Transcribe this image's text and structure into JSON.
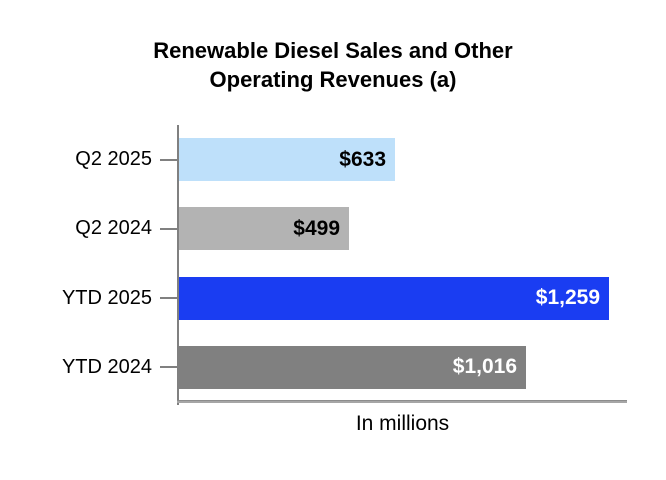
{
  "title": {
    "line1": "Renewable Diesel Sales and Other",
    "line2": "Operating Revenues (a)"
  },
  "chart_data": {
    "type": "bar",
    "orientation": "horizontal",
    "title": "Renewable Diesel Sales and Other Operating Revenues (a)",
    "xlabel": "In millions",
    "categories": [
      "Q2 2025",
      "Q2 2024",
      "YTD 2025",
      "YTD 2024"
    ],
    "values": [
      633,
      499,
      1259,
      1016
    ],
    "value_labels": [
      "$633",
      "$499",
      "$1,259",
      "$1,016"
    ],
    "xlim": [
      0,
      1315
    ],
    "grid": false,
    "legend": null,
    "colors": {
      "bars": [
        "#BEE0FA",
        "#B3B3B3",
        "#1A3DF2",
        "#808080"
      ],
      "value_label_text": [
        "#000000",
        "#000000",
        "#FFFFFF",
        "#FFFFFF"
      ],
      "axis_line": "#808080",
      "baseline": "#A6A6A6",
      "title_text": "#000000"
    }
  }
}
